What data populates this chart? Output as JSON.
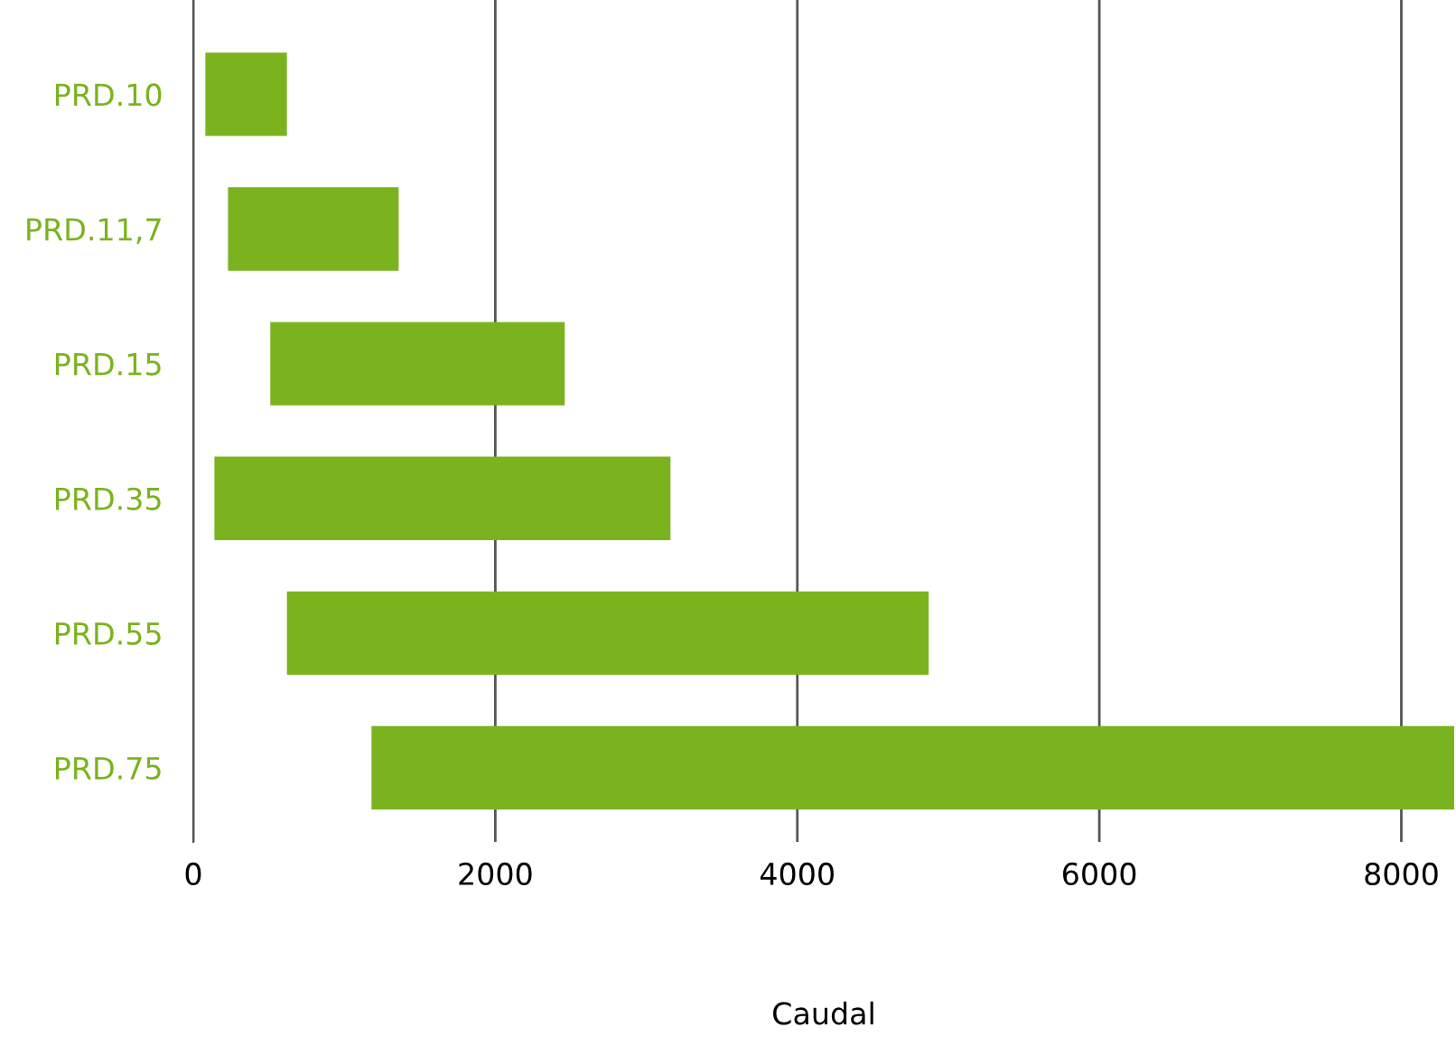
{
  "chart_data": {
    "type": "bar",
    "orientation": "horizontal",
    "xlabel": "Caudal",
    "categories": [
      "PRD.10",
      "PRD.11,7",
      "PRD.15",
      "PRD.35",
      "PRD.55",
      "PRD.75"
    ],
    "base": [
      80,
      230,
      510,
      140,
      620,
      1180
    ],
    "values": [
      540,
      1130,
      1950,
      3020,
      4250,
      7170
    ],
    "color": "#7bb31f",
    "xlim": [
      0,
      8350
    ],
    "xticks": [
      0,
      2000,
      4000,
      6000,
      8000
    ],
    "grid": "x"
  }
}
